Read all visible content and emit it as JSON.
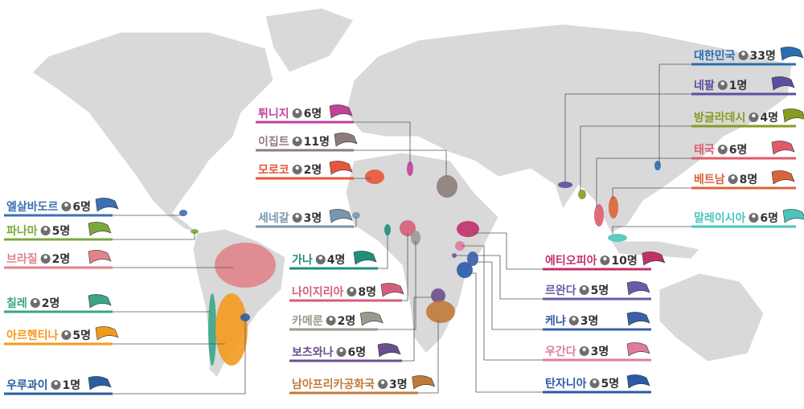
{
  "labels": [
    {
      "name": "엘살바도르",
      "count": "6명",
      "color": "#3d6fb3"
    },
    {
      "name": "파나마",
      "count": "5명",
      "color": "#7aa83a"
    },
    {
      "name": "브라질",
      "count": "2명",
      "color": "#e0838b"
    },
    {
      "name": "칠레",
      "count": "2명",
      "color": "#3aa587"
    },
    {
      "name": "아르헨티나",
      "count": "5명",
      "color": "#f39a1e"
    },
    {
      "name": "우루과이",
      "count": "1명",
      "color": "#2a5fa0"
    },
    {
      "name": "튀니지",
      "count": "6명",
      "color": "#c2409a"
    },
    {
      "name": "이집트",
      "count": "11명",
      "color": "#8c7d7a"
    },
    {
      "name": "모로코",
      "count": "2명",
      "color": "#e8553a"
    },
    {
      "name": "세네갈",
      "count": "3명",
      "color": "#7a97ad"
    },
    {
      "name": "가나",
      "count": "4명",
      "color": "#1f8f7a"
    },
    {
      "name": "나이지리아",
      "count": "8명",
      "color": "#d45f7a"
    },
    {
      "name": "카메룬",
      "count": "2명",
      "color": "#9a9a8e"
    },
    {
      "name": "보츠와나",
      "count": "6명",
      "color": "#6a4f8e"
    },
    {
      "name": "남아프리카공화국",
      "count": "3명",
      "color": "#c07a3a"
    },
    {
      "name": "대한민국",
      "count": "33명",
      "color": "#2a6db0"
    },
    {
      "name": "네팔",
      "count": "1명",
      "color": "#5a4fa0"
    },
    {
      "name": "방글라데시",
      "count": "4명",
      "color": "#8a9a20"
    },
    {
      "name": "태국",
      "count": "6명",
      "color": "#e05a6a"
    },
    {
      "name": "베트남",
      "count": "8명",
      "color": "#d8643a"
    },
    {
      "name": "말레이시아",
      "count": "6명",
      "color": "#4cc4bc"
    },
    {
      "name": "에티오피아",
      "count": "10명",
      "color": "#c0306a"
    },
    {
      "name": "르완다",
      "count": "5명",
      "color": "#6a5aa8"
    },
    {
      "name": "케냐",
      "count": "3명",
      "color": "#3a5fa8"
    },
    {
      "name": "우간다",
      "count": "3명",
      "color": "#e07aa0"
    },
    {
      "name": "탄자니아",
      "count": "5명",
      "color": "#2a5aa8"
    }
  ]
}
